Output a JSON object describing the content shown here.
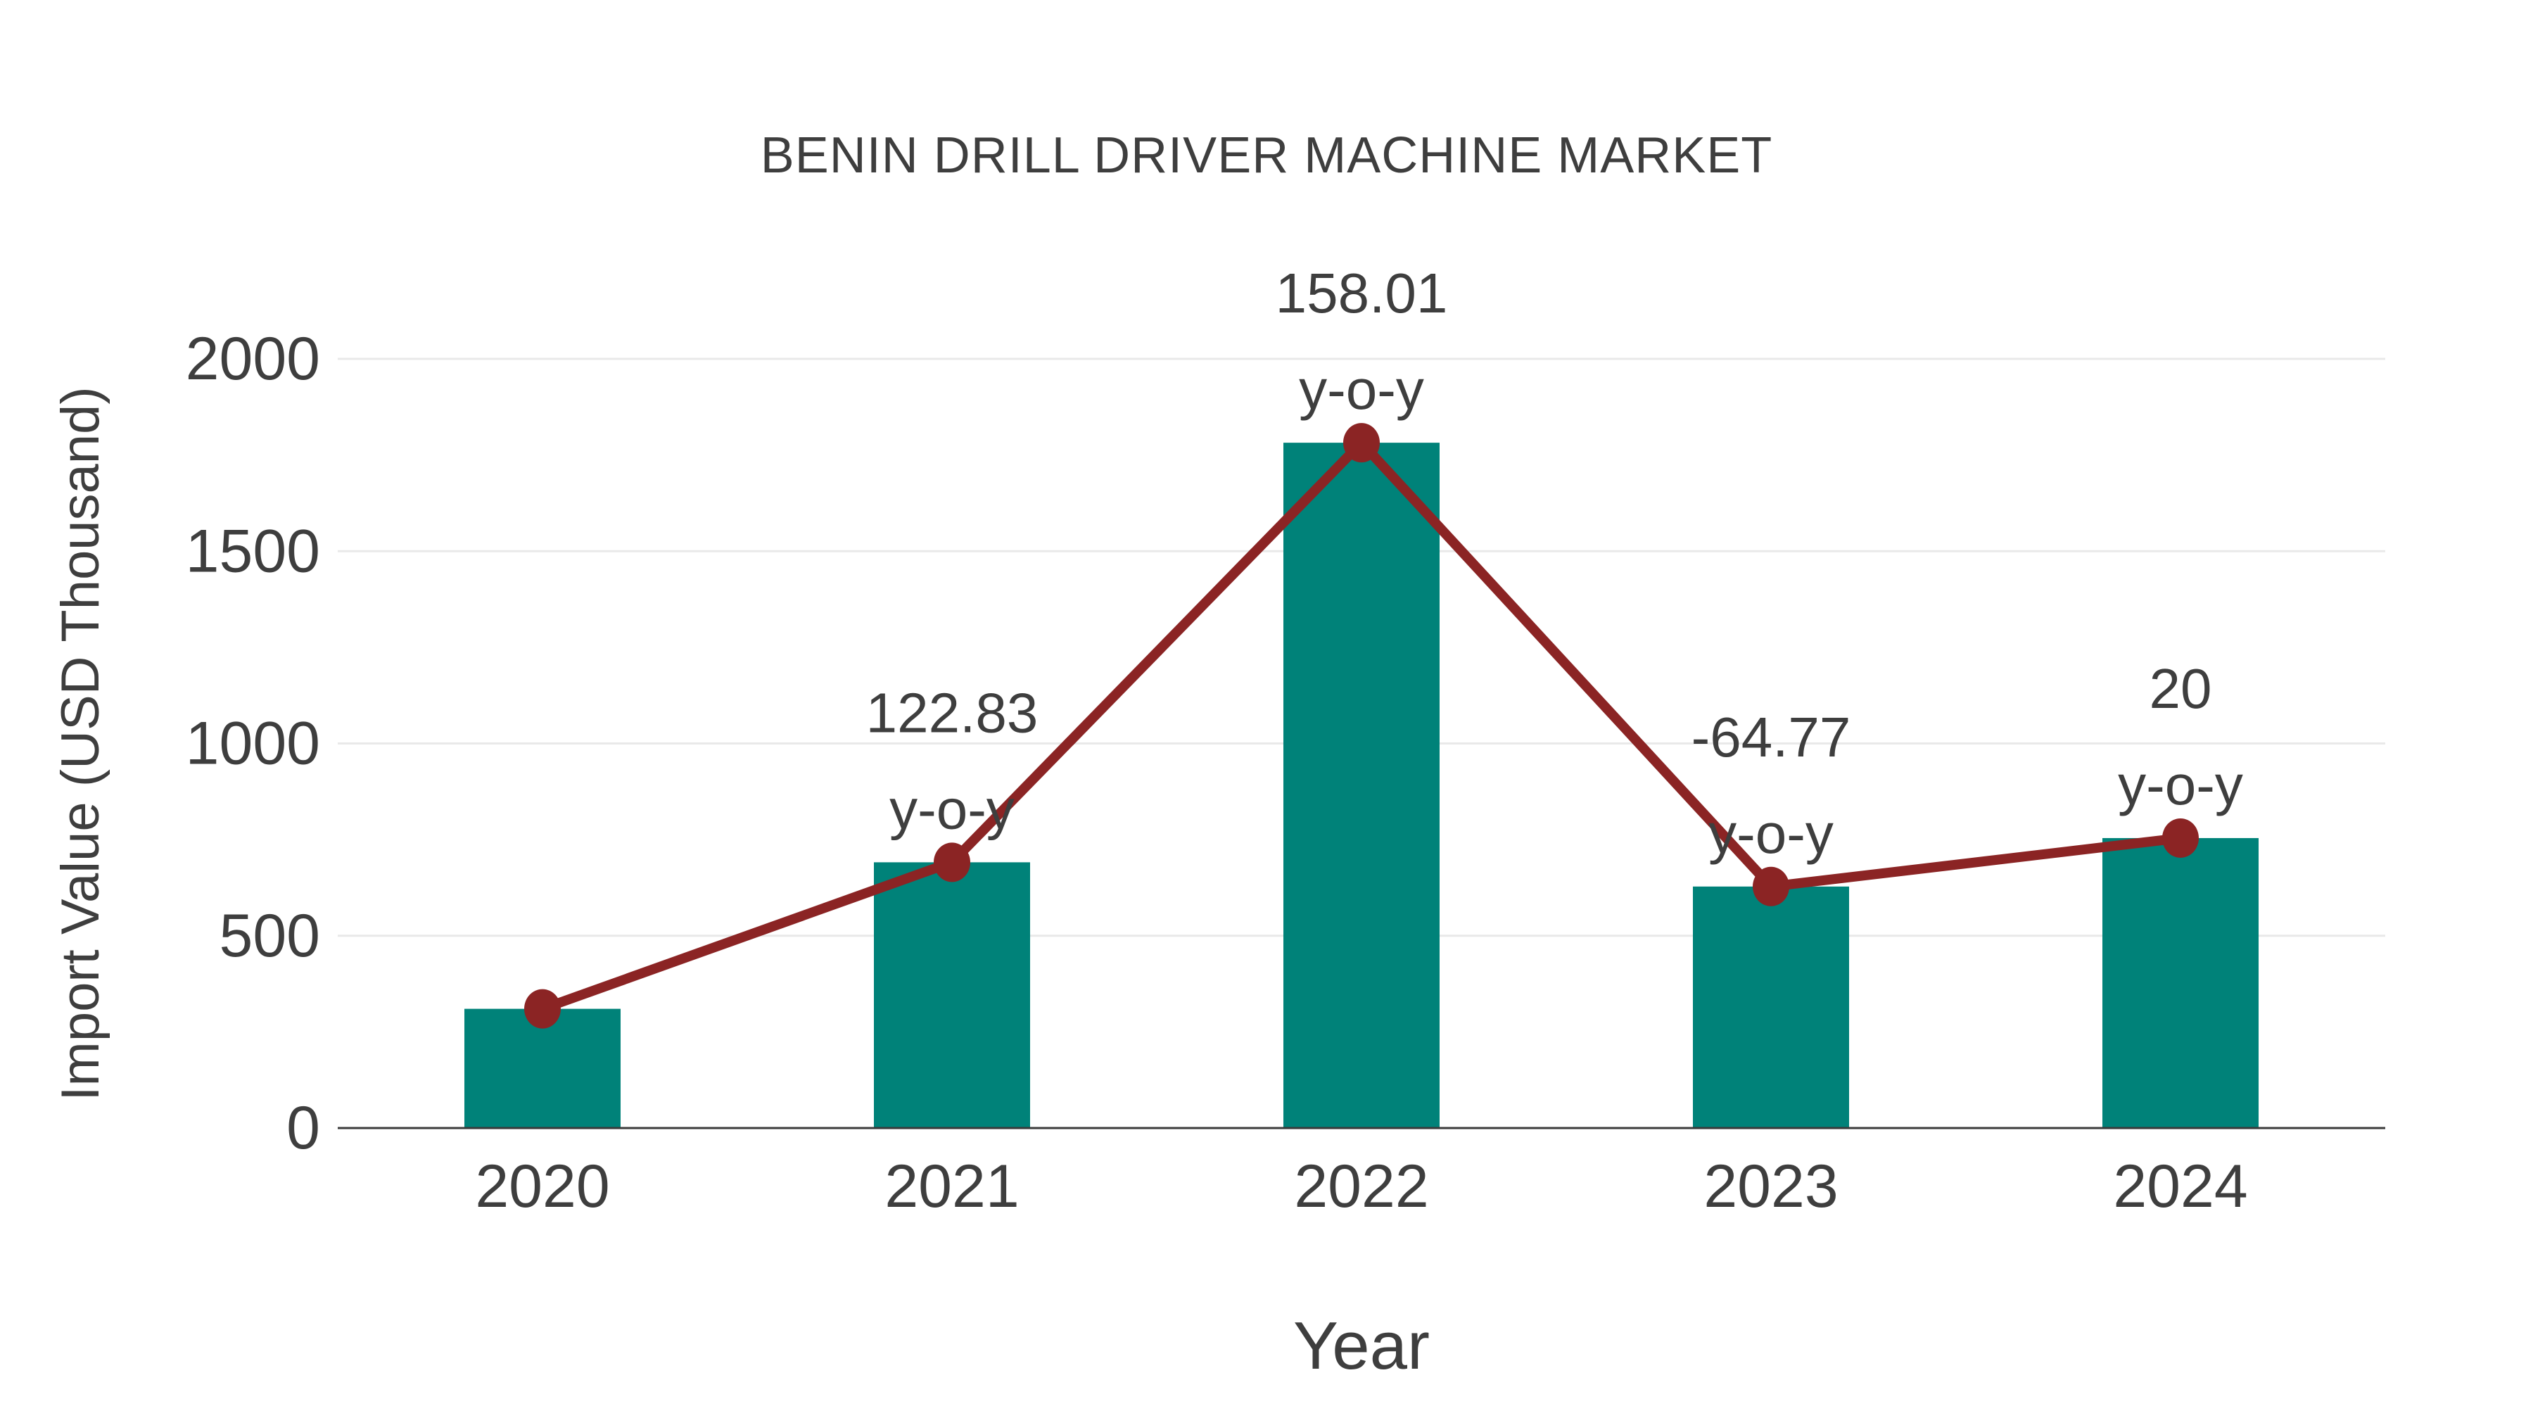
{
  "chart_data": {
    "type": "bar",
    "title": "BENIN DRILL DRIVER MACHINE MARKET",
    "xlabel": "Year",
    "ylabel": "Import Value (USD Thousand)",
    "categories": [
      "2020",
      "2021",
      "2022",
      "2023",
      "2024"
    ],
    "series": [
      {
        "name": "Import Value bars",
        "type": "bar",
        "color": "#008279",
        "values": [
          310,
          691,
          1782,
          628,
          754
        ]
      },
      {
        "name": "Import Value trend line with markers",
        "type": "line",
        "color": "#8b2424",
        "marker_color": "#8b2424",
        "values": [
          310,
          691,
          1782,
          628,
          754
        ]
      }
    ],
    "annotations": [
      {
        "category": "2021",
        "lines": [
          "122.83",
          "y-o-y"
        ]
      },
      {
        "category": "2022",
        "lines": [
          "158.01",
          "y-o-y"
        ]
      },
      {
        "category": "2023",
        "lines": [
          "-64.77",
          "y-o-y"
        ]
      },
      {
        "category": "2024",
        "lines": [
          "20",
          "y-o-y"
        ]
      }
    ],
    "yticks": [
      0,
      500,
      1000,
      1500,
      2000
    ],
    "ylim": [
      0,
      2000
    ],
    "grid": true,
    "legend_position": "none"
  },
  "colors": {
    "bar": "#008279",
    "line": "#8b2424",
    "marker": "#8b2424",
    "gridline": "#e9e9e9",
    "axis_line": "#3a3a3a",
    "text": "#3e3e3e",
    "background": "#ffffff"
  }
}
